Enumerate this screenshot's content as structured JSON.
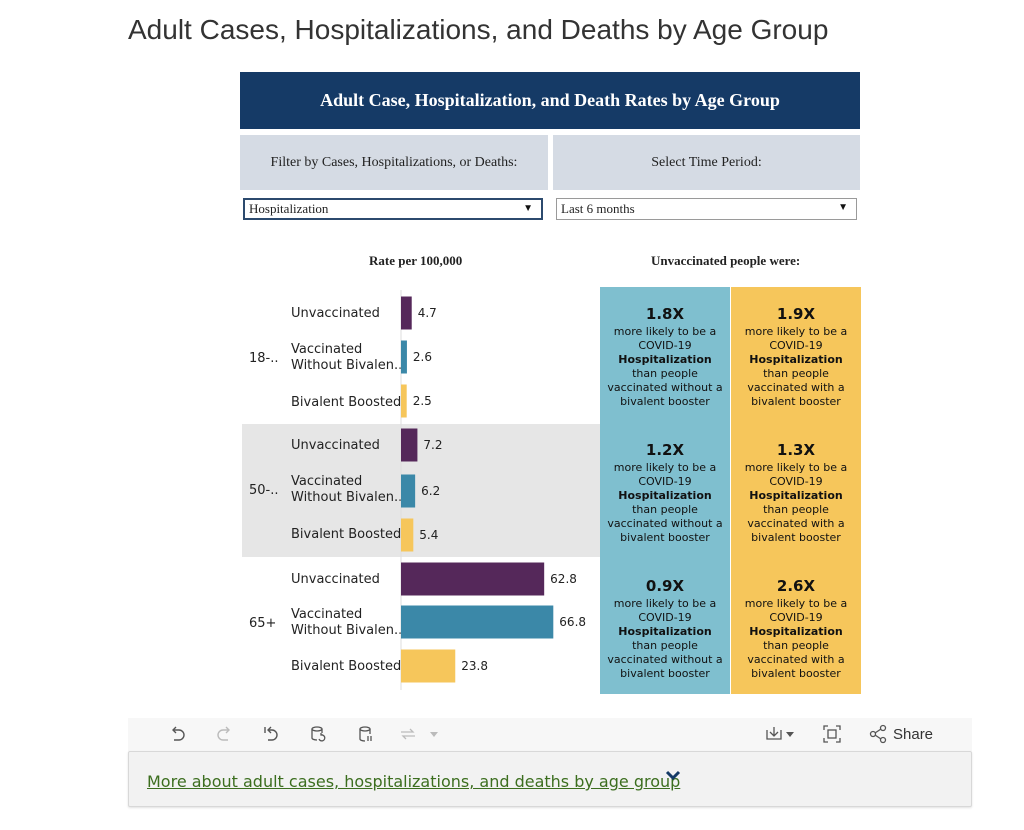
{
  "page_title": "Adult Cases, Hospitalizations, and Deaths by Age Group",
  "viz_title": "Adult Case, Hospitalization, and Death Rates by Age Group",
  "filters": {
    "metric_label": "Filter by Cases, Hospitalizations, or Deaths:",
    "metric_value": "Hospitalization",
    "period_label": "Select Time Period:",
    "period_value": "Last 6 months"
  },
  "rate_header": "Rate per 100,000",
  "comparison_header": "Unvaccinated people were:",
  "age_groups": [
    "18-..",
    "50-..",
    "65+"
  ],
  "row_labels": [
    "Unvaccinated",
    "Vaccinated\nWithout Bivalen..",
    "Bivalent Boosted"
  ],
  "colors": {
    "unvaccinated": "#55285a",
    "vaccinated_without_bivalent": "#3b88a8",
    "bivalent_boosted": "#f6c65b",
    "header_bg": "#153a66",
    "card_blue": "#7fbfcf",
    "card_gold": "#f6c65b"
  },
  "chart_data": {
    "type": "bar",
    "orientation": "horizontal",
    "title": "Rate per 100,000",
    "categories": [
      "18-..",
      "50-..",
      "65+"
    ],
    "series": [
      {
        "name": "Unvaccinated",
        "values": [
          4.7,
          7.2,
          62.8
        ]
      },
      {
        "name": "Vaccinated Without Bivalen..",
        "values": [
          2.6,
          6.2,
          66.8
        ]
      },
      {
        "name": "Bivalent Boosted",
        "values": [
          2.5,
          5.4,
          23.8
        ]
      }
    ],
    "xlim": [
      0,
      70
    ]
  },
  "comparisons": [
    {
      "vs_without_bivalent": {
        "multiplier": "1.8X",
        "line1": "more likely to be a COVID-19",
        "metric": "Hospitalization",
        "line2": "than people",
        "line3": "vaccinated without a bivalent booster"
      },
      "vs_with_bivalent": {
        "multiplier": "1.9X",
        "line1": "more likely to be a COVID-19",
        "metric": "Hospitalization",
        "line2": "than people",
        "line3": "vaccinated with a bivalent booster"
      }
    },
    {
      "vs_without_bivalent": {
        "multiplier": "1.2X",
        "line1": "more likely to be a COVID-19",
        "metric": "Hospitalization",
        "line2": "than people",
        "line3": "vaccinated without a bivalent booster"
      },
      "vs_with_bivalent": {
        "multiplier": "1.3X",
        "line1": "more likely to be a COVID-19",
        "metric": "Hospitalization",
        "line2": "than people",
        "line3": "vaccinated with a bivalent booster"
      }
    },
    {
      "vs_without_bivalent": {
        "multiplier": "0.9X",
        "line1": "more likely to be a COVID-19",
        "metric": "Hospitalization",
        "line2": "than people",
        "line3": "vaccinated without a bivalent booster"
      },
      "vs_with_bivalent": {
        "multiplier": "2.6X",
        "line1": "more likely to be a COVID-19",
        "metric": "Hospitalization",
        "line2": "than people",
        "line3": "vaccinated with a bivalent booster"
      }
    }
  ],
  "toolbar": {
    "share_label": "Share",
    "icons": [
      "undo-icon",
      "redo-icon",
      "revert-icon",
      "refresh-data-icon",
      "pause-data-icon",
      "view-toggle-icon",
      "download-icon",
      "fullscreen-icon",
      "share-icon"
    ]
  },
  "more_link": "More about adult cases, hospitalizations, and deaths by age group"
}
